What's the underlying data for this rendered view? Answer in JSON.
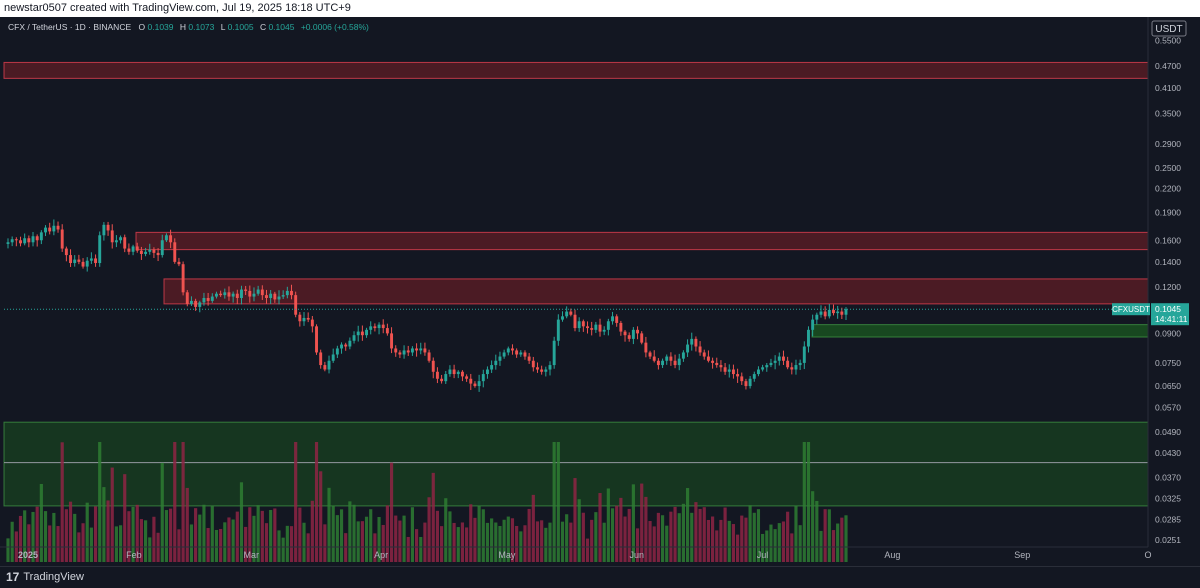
{
  "header": {
    "credit": "newstar0507 created with TradingView.com, Jul 19, 2025 18:18 UTC+9"
  },
  "legend": {
    "symbol": "CFX / TetherUS · 1D · BINANCE",
    "o_label": "O",
    "o_value": "0.1039",
    "h_label": "H",
    "h_value": "0.1073",
    "l_label": "L",
    "l_value": "0.1005",
    "c_label": "C",
    "c_value": "0.1045",
    "change": "+0.0006 (+0.58%)"
  },
  "price_axis": {
    "currency": "USDT",
    "ticks": [
      "0.5500",
      "0.4700",
      "0.4100",
      "0.3500",
      "0.2900",
      "0.2500",
      "0.2200",
      "0.1900",
      "0.1600",
      "0.1400",
      "0.1200",
      "0.1045",
      "0.0900",
      "0.0750",
      "0.0650",
      "0.0570",
      "0.0490",
      "0.0430",
      "0.0370",
      "0.0325",
      "0.0285",
      "0.0251"
    ]
  },
  "last_price": {
    "symbol": "CFXUSDT",
    "price": "0.1045",
    "countdown": "14:41:11"
  },
  "time_axis": {
    "labels": [
      "2025",
      "Feb",
      "Mar",
      "Apr",
      "May",
      "Jun",
      "Jul",
      "Aug",
      "Sep",
      "O"
    ]
  },
  "footer": {
    "brand": "TradingView",
    "logo_glyph": "17"
  },
  "colors": {
    "background": "#131722",
    "up": "#26a69a",
    "down": "#ef5350",
    "volume_up": "#2e7d32",
    "volume_down": "#8e2444",
    "resistance_zone": "#7a1f27",
    "support_zone": "#1b5e20",
    "accent": "#26a69a"
  },
  "chart_data": {
    "type": "candlestick",
    "scale": "log",
    "ylim": [
      0.0245,
      0.62
    ],
    "x_range": [
      "2025-01-01",
      "2025-10-01"
    ],
    "resistance_zones": [
      {
        "low": 0.435,
        "high": 0.48
      },
      {
        "low": 0.151,
        "high": 0.168
      },
      {
        "low": 0.108,
        "high": 0.126
      }
    ],
    "support_zones": [
      {
        "low": 0.088,
        "high": 0.095
      },
      {
        "low": 0.031,
        "high": 0.052
      }
    ],
    "horizontal_line": 0.0405,
    "last_close": 0.1045,
    "closes": [
      0.158,
      0.161,
      0.16,
      0.157,
      0.162,
      0.158,
      0.164,
      0.16,
      0.168,
      0.173,
      0.169,
      0.175,
      0.171,
      0.152,
      0.146,
      0.139,
      0.142,
      0.14,
      0.136,
      0.141,
      0.143,
      0.139,
      0.165,
      0.176,
      0.17,
      0.158,
      0.16,
      0.163,
      0.152,
      0.149,
      0.154,
      0.15,
      0.147,
      0.149,
      0.151,
      0.148,
      0.146,
      0.16,
      0.165,
      0.158,
      0.14,
      0.138,
      0.116,
      0.108,
      0.11,
      0.106,
      0.109,
      0.112,
      0.11,
      0.113,
      0.115,
      0.114,
      0.116,
      0.113,
      0.115,
      0.112,
      0.118,
      0.117,
      0.113,
      0.115,
      0.118,
      0.114,
      0.112,
      0.115,
      0.111,
      0.113,
      0.114,
      0.117,
      0.114,
      0.101,
      0.097,
      0.099,
      0.098,
      0.094,
      0.08,
      0.074,
      0.072,
      0.076,
      0.079,
      0.082,
      0.084,
      0.083,
      0.086,
      0.089,
      0.091,
      0.089,
      0.092,
      0.094,
      0.093,
      0.095,
      0.093,
      0.09,
      0.082,
      0.08,
      0.079,
      0.081,
      0.08,
      0.082,
      0.081,
      0.082,
      0.08,
      0.076,
      0.071,
      0.068,
      0.067,
      0.07,
      0.072,
      0.07,
      0.071,
      0.069,
      0.068,
      0.066,
      0.065,
      0.067,
      0.07,
      0.072,
      0.074,
      0.076,
      0.078,
      0.08,
      0.082,
      0.081,
      0.079,
      0.08,
      0.078,
      0.076,
      0.073,
      0.072,
      0.071,
      0.072,
      0.074,
      0.086,
      0.098,
      0.1,
      0.103,
      0.101,
      0.093,
      0.097,
      0.094,
      0.093,
      0.092,
      0.095,
      0.091,
      0.092,
      0.097,
      0.1,
      0.096,
      0.091,
      0.089,
      0.087,
      0.092,
      0.09,
      0.085,
      0.08,
      0.078,
      0.076,
      0.074,
      0.076,
      0.078,
      0.076,
      0.074,
      0.077,
      0.08,
      0.084,
      0.087,
      0.083,
      0.08,
      0.078,
      0.076,
      0.075,
      0.074,
      0.073,
      0.071,
      0.072,
      0.07,
      0.069,
      0.067,
      0.065,
      0.068,
      0.07,
      0.072,
      0.073,
      0.074,
      0.075,
      0.076,
      0.078,
      0.076,
      0.073,
      0.072,
      0.074,
      0.075,
      0.083,
      0.092,
      0.098,
      0.101,
      0.103,
      0.1,
      0.104,
      0.102,
      0.103,
      0.101,
      0.1045
    ],
    "volume_scale": [
      0,
      1
    ]
  }
}
